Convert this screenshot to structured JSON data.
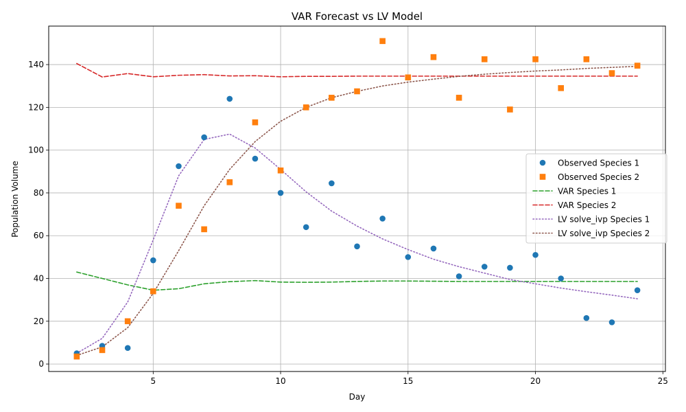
{
  "chart_data": {
    "type": "line",
    "title": "VAR Forecast vs LV Model",
    "xlabel": "Day",
    "ylabel": "Population Volume",
    "xlim": [
      0.9,
      25.1
    ],
    "ylim": [
      -3.5,
      158
    ],
    "xticks": [
      5,
      10,
      15,
      20,
      25
    ],
    "yticks": [
      0,
      20,
      40,
      60,
      80,
      100,
      120,
      140
    ],
    "grid": true,
    "legend_position": "center-right",
    "x": [
      2,
      3,
      4,
      5,
      6,
      7,
      8,
      9,
      10,
      11,
      12,
      13,
      14,
      15,
      16,
      17,
      18,
      19,
      20,
      21,
      22,
      23,
      24
    ],
    "series": [
      {
        "name": "Observed Species 1",
        "kind": "scatter",
        "marker": "circle",
        "color": "#1f77b4",
        "values": [
          5,
          8.5,
          7.5,
          48.5,
          92.5,
          106,
          124,
          96,
          80,
          64,
          84.5,
          55,
          68,
          50,
          54,
          41,
          45.5,
          45,
          51,
          40,
          21.5,
          19.5,
          34.5
        ]
      },
      {
        "name": "Observed Species 2",
        "kind": "scatter",
        "marker": "square",
        "color": "#ff7f0e",
        "values": [
          3.5,
          6.5,
          20,
          34,
          74,
          63,
          85,
          113,
          90.5,
          120,
          124.5,
          127.5,
          151,
          134,
          143.5,
          124.5,
          142.5,
          119,
          142.5,
          129,
          142.5,
          136,
          139.5
        ]
      },
      {
        "name": "VAR Species 1",
        "kind": "line",
        "dash": "dashed",
        "color": "#2ca02c",
        "values": [
          43,
          40,
          37,
          34.5,
          35.2,
          37.5,
          38.5,
          39,
          38.3,
          38.2,
          38.3,
          38.6,
          38.8,
          38.8,
          38.7,
          38.6,
          38.6,
          38.6,
          38.6,
          38.6,
          38.6,
          38.6,
          38.6
        ]
      },
      {
        "name": "VAR Species 2",
        "kind": "line",
        "dash": "dashed",
        "color": "#d62728",
        "values": [
          140.5,
          134.2,
          135.8,
          134.3,
          135,
          135.3,
          134.7,
          134.8,
          134.3,
          134.5,
          134.5,
          134.6,
          134.6,
          134.6,
          134.6,
          134.6,
          134.6,
          134.6,
          134.6,
          134.6,
          134.6,
          134.6,
          134.6
        ]
      },
      {
        "name": "LV solve_ivp Species 1",
        "kind": "line",
        "dash": "dotted",
        "color": "#9467bd",
        "values": [
          5,
          12,
          29,
          58,
          88,
          105,
          107.5,
          101,
          91,
          80.5,
          71.5,
          64.5,
          58.5,
          53.5,
          49,
          45.5,
          42.5,
          39.5,
          37.5,
          35.5,
          33.8,
          32.2,
          30.5
        ]
      },
      {
        "name": "LV solve_ivp Species 2",
        "kind": "line",
        "dash": "dotted",
        "color": "#8c564b",
        "values": [
          4,
          8,
          17,
          33,
          53,
          74,
          91,
          104,
          113.5,
          120,
          124.5,
          127.5,
          130,
          131.8,
          133.2,
          134.5,
          135.5,
          136.3,
          137,
          137.5,
          138.2,
          138.7,
          139.2
        ]
      }
    ]
  }
}
